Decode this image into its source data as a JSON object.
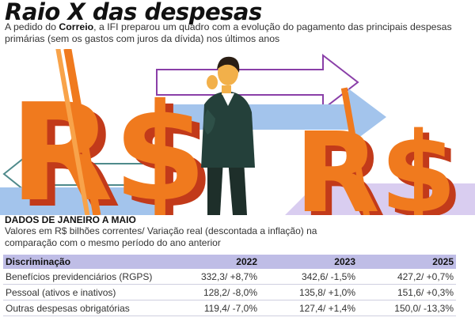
{
  "header": {
    "title": "Raio X das despesas",
    "intro_before": "A pedido do ",
    "intro_bold": "Correio",
    "intro_after": ", a IFI preparou um quadro com a evolução do pagamento das principais despesas primárias (sem os gastos com juros da dívida) nos últimos anos"
  },
  "illustration": {
    "symbols": [
      "R$",
      "R$"
    ],
    "colors": {
      "dollar_orange": "#f07a1e",
      "dollar_dark": "#c23a1a",
      "dollar_light": "#f8a34a",
      "arrow_blue": "#a3c4ec",
      "arrow_purple": "#8a3fa8",
      "arrow_lavender": "#d9cdf0",
      "jacket": "#24403a",
      "skin": "#f2b04a"
    }
  },
  "section": {
    "heading": "DADOS DE JANEIRO A MAIO",
    "subtitle": "Valores em R$ bilhões correntes/ Variação real (descontada a inflação) na comparação com o mesmo período do ano anterior"
  },
  "table": {
    "header_bg": "#bfbde6",
    "columns": [
      "Discriminação",
      "2022",
      "2023",
      "2025"
    ],
    "rows": [
      {
        "label": "Benefícios previdenciários (RGPS)",
        "v2022": "332,3/ +8,7%",
        "v2023": "342,6/ -1,5%",
        "v2025": "427,2/ +0,7%"
      },
      {
        "label": "Pessoal (ativos e inativos)",
        "v2022": "128,2/ -8,0%",
        "v2023": "135,8/ +1,0%",
        "v2025": "151,6/ +0,3%"
      },
      {
        "label": "Outras despesas obrigatórias",
        "v2022": "119,4/ -7,0%",
        "v2023": "127,4/ +1,4%",
        "v2025": "150,0/ -13,3%"
      }
    ]
  }
}
